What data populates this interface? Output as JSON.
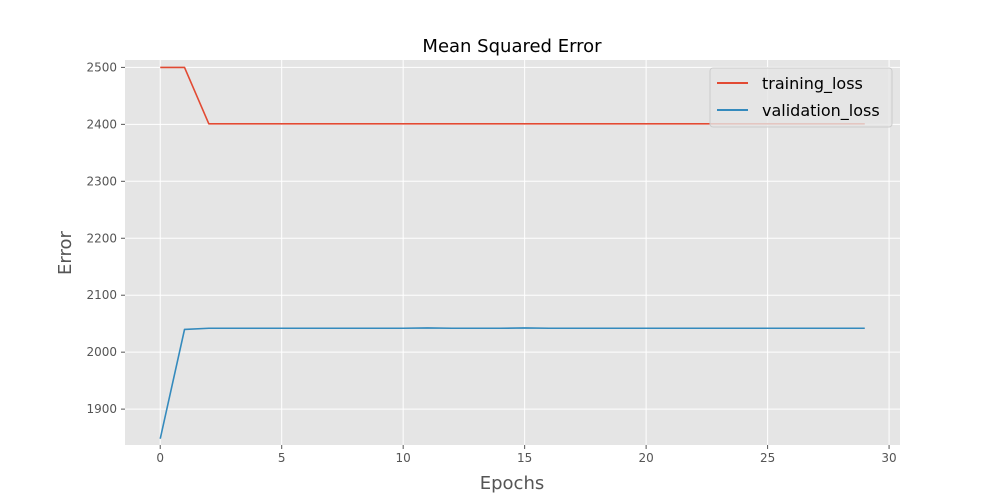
{
  "chart_data": {
    "type": "line",
    "title": "Mean Squared Error",
    "xlabel": "Epochs",
    "ylabel": "Error",
    "xlim": [
      -1.45,
      30.45
    ],
    "ylim": [
      1837,
      2513
    ],
    "xticks": [
      0,
      5,
      10,
      15,
      20,
      25,
      30
    ],
    "yticks": [
      1900,
      2000,
      2100,
      2200,
      2300,
      2400,
      2500
    ],
    "grid": true,
    "legend_position": "top-right",
    "x": [
      0,
      1,
      2,
      3,
      4,
      5,
      6,
      7,
      8,
      9,
      10,
      11,
      12,
      13,
      14,
      15,
      16,
      17,
      18,
      19,
      20,
      21,
      22,
      23,
      24,
      25,
      26,
      27,
      28,
      29
    ],
    "series": [
      {
        "name": "training_loss",
        "color": "#e24a33",
        "values": [
          2500,
          2500,
          2401,
          2401,
          2401,
          2401,
          2401,
          2401,
          2401,
          2401,
          2401,
          2401,
          2401,
          2401,
          2401,
          2401,
          2401,
          2401,
          2401,
          2401,
          2401,
          2401,
          2401,
          2401,
          2401,
          2401,
          2401,
          2401,
          2401,
          2401
        ]
      },
      {
        "name": "validation_loss",
        "color": "#348abd",
        "values": [
          1848,
          2040,
          2042,
          2042,
          2042,
          2042,
          2042,
          2042,
          2042,
          2042,
          2042,
          2042.5,
          2042,
          2042,
          2042,
          2042.5,
          2042,
          2042,
          2042,
          2042,
          2042,
          2042,
          2042,
          2042,
          2042,
          2042,
          2042,
          2042,
          2042,
          2042
        ]
      }
    ]
  },
  "colors": {
    "plot_background": "#e5e5e5",
    "grid": "#ffffff"
  }
}
